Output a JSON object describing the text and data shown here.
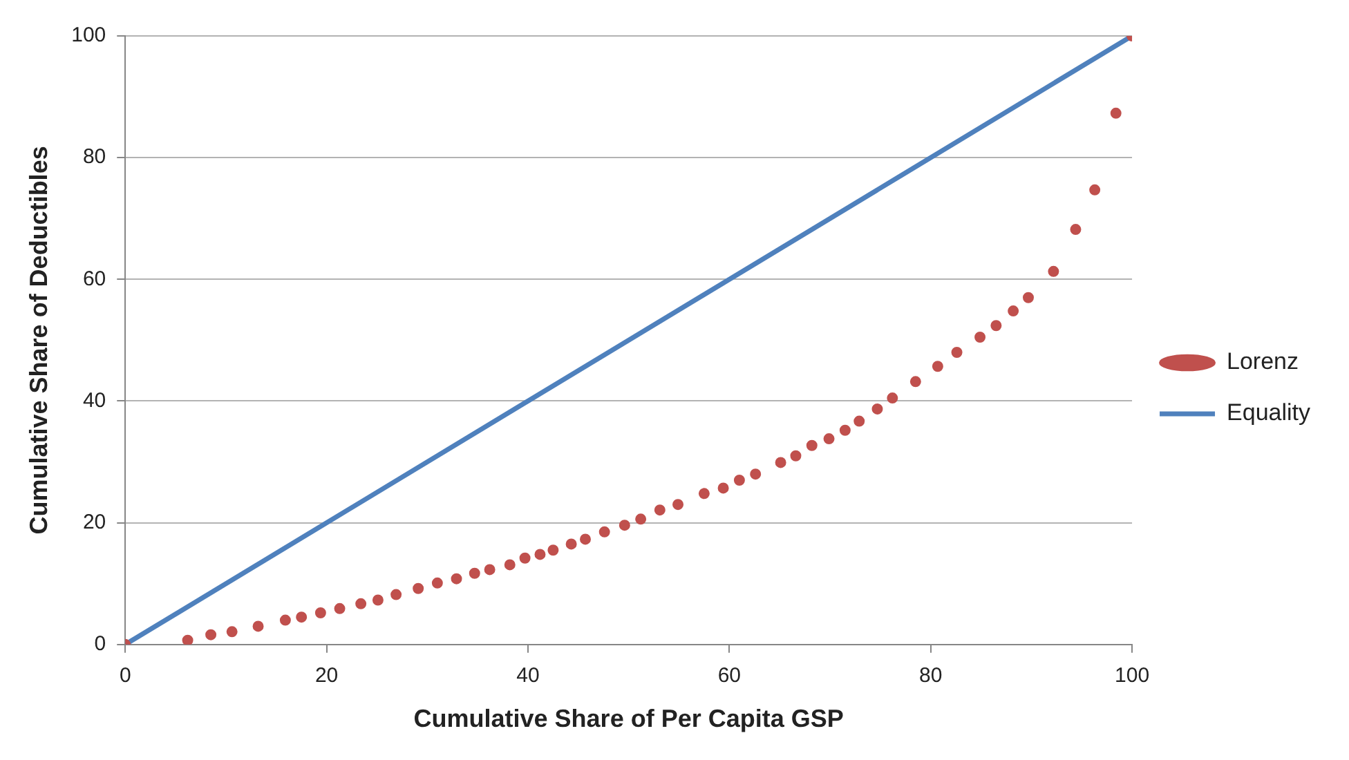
{
  "chart_data": {
    "type": "scatter",
    "xlabel": "Cumulative Share of Per Capita GSP",
    "ylabel": "Cumulative Share of Deductibles",
    "xlim": [
      0,
      100
    ],
    "ylim": [
      0,
      100
    ],
    "xticks": [
      0,
      20,
      40,
      60,
      80,
      100
    ],
    "yticks": [
      0,
      20,
      40,
      60,
      80,
      100
    ],
    "grid": "y",
    "legend": "right",
    "series": [
      {
        "name": "Lorenz",
        "color": "#c0504d",
        "marker": "circle",
        "x": [
          0,
          6.2,
          8.5,
          10.6,
          13.2,
          15.9,
          17.5,
          19.4,
          21.3,
          23.4,
          25.1,
          26.9,
          29.1,
          31.0,
          32.9,
          34.7,
          36.2,
          38.2,
          39.7,
          41.2,
          42.5,
          44.3,
          45.7,
          47.6,
          49.6,
          51.2,
          53.1,
          54.9,
          57.5,
          59.4,
          61.0,
          62.6,
          65.1,
          66.6,
          68.2,
          69.9,
          71.5,
          72.9,
          74.7,
          76.2,
          78.5,
          80.7,
          82.6,
          84.9,
          86.5,
          88.2,
          89.7,
          92.2,
          94.4,
          96.3,
          98.4,
          100
        ],
        "values": [
          0,
          0.7,
          1.6,
          2.1,
          3.0,
          4.0,
          4.5,
          5.2,
          5.9,
          6.7,
          7.3,
          8.2,
          9.2,
          10.1,
          10.8,
          11.7,
          12.3,
          13.1,
          14.2,
          14.8,
          15.5,
          16.5,
          17.3,
          18.5,
          19.6,
          20.6,
          22.1,
          23.0,
          24.8,
          25.7,
          27.0,
          28.0,
          29.9,
          31.0,
          32.7,
          33.8,
          35.2,
          36.7,
          38.7,
          40.5,
          43.2,
          45.7,
          48.0,
          50.5,
          52.4,
          54.8,
          57.0,
          61.3,
          68.2,
          74.7,
          87.3,
          100
        ]
      },
      {
        "name": "Equality",
        "type": "line",
        "color": "#4f81bd",
        "marker": "none",
        "line_style": "solid",
        "x": [
          0,
          100
        ],
        "values": [
          0,
          100
        ]
      }
    ]
  }
}
